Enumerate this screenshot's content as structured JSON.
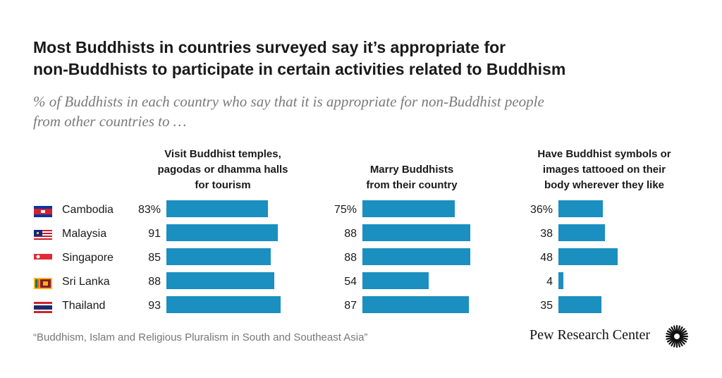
{
  "title_line1": "Most Buddhists in countries surveyed say it’s appropriate for",
  "title_line2": "non-Buddhists to participate in certain activities related to Buddhism",
  "subtitle_line1": "% of Buddhists in each country who say that it is appropriate for non-Buddhist people",
  "subtitle_line2": "from other countries to …",
  "source": "“Buddhism, Islam and Religious Pluralism in South and Southeast Asia”",
  "brand": "Pew Research Center",
  "colors": {
    "bar": "#1a8fc0",
    "title": "#1a1a1a",
    "subtitle": "#7a7a7a"
  },
  "chart_data": {
    "type": "bar",
    "orientation": "horizontal",
    "categories": [
      "Cambodia",
      "Malaysia",
      "Singapore",
      "Sri Lanka",
      "Thailand"
    ],
    "unit": "%",
    "series": [
      {
        "name": "Visit Buddhist temples, pagodas or dhamma halls for tourism",
        "label_lines": [
          "Visit Buddhist temples,",
          "pagodas or dhamma halls",
          "for tourism"
        ],
        "values": [
          83,
          91,
          85,
          88,
          93
        ],
        "labels": [
          "83%",
          "91",
          "85",
          "88",
          "93"
        ]
      },
      {
        "name": "Marry Buddhists from their country",
        "label_lines": [
          "Marry Buddhists",
          "from their country"
        ],
        "values": [
          75,
          88,
          88,
          54,
          87
        ],
        "labels": [
          "75%",
          "88",
          "88",
          "54",
          "87"
        ]
      },
      {
        "name": "Have Buddhist symbols or images tattooed on their body wherever they like",
        "label_lines": [
          "Have Buddhist symbols or",
          "images tattooed on their",
          "body wherever they like"
        ],
        "values": [
          36,
          38,
          48,
          4,
          35
        ],
        "labels": [
          "36%",
          "38",
          "48",
          "4",
          "35"
        ]
      }
    ]
  },
  "flags": {
    "Cambodia": "flag-cambodia-icon",
    "Malaysia": "flag-malaysia-icon",
    "Singapore": "flag-singapore-icon",
    "Sri Lanka": "flag-sri-lanka-icon",
    "Thailand": "flag-thailand-icon"
  }
}
